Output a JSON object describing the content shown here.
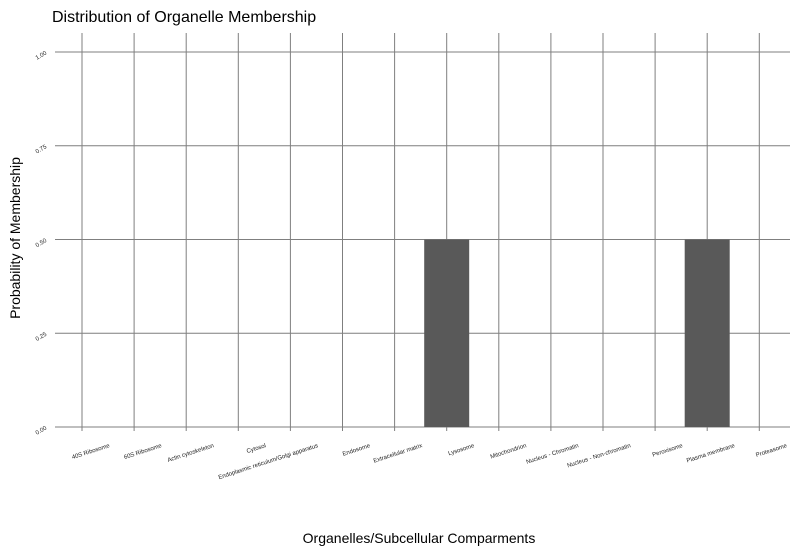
{
  "chart_data": {
    "type": "bar",
    "title": "Distribution of Organelle Membership",
    "xlabel": "Organelles/Subcellular Comparments",
    "ylabel": "Probability of Membership",
    "categories": [
      "40S Ribosome",
      "60S Ribosome",
      "Actin cytoskeleton",
      "Cytosol",
      "Endoplasmic reticulum/Golgi apparatus",
      "Endosome",
      "Extracellular matrix",
      "Lysosome",
      "Mitochondrion",
      "Nucleus - Chromatin",
      "Nucleus - Non-chromatin",
      "Peroxisome",
      "Plasma membrane",
      "Proteasome"
    ],
    "values": [
      0,
      0,
      0,
      0,
      0,
      0,
      0,
      0.5,
      0,
      0,
      0,
      0,
      0.5,
      0
    ],
    "y_ticks": [
      "0.00",
      "0.25",
      "0.50",
      "0.75",
      "1.00"
    ],
    "ylim": [
      0,
      1
    ],
    "grid": true,
    "bar_color": "#595959",
    "grid_color": "#7f7f7f"
  }
}
